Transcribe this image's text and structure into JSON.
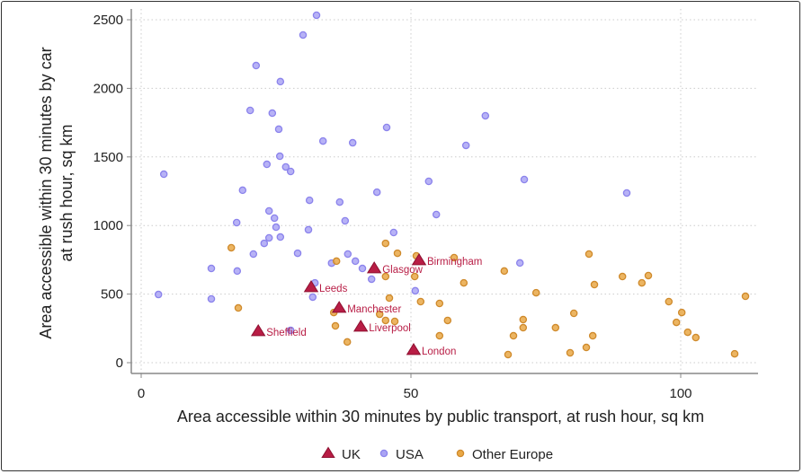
{
  "chart_data": {
    "type": "scatter",
    "title": "",
    "xlabel": "Area accessible within 30 minutes by public transport, at rush hour, sq km",
    "ylabel": [
      "Area accessible within 30 minutes by car",
      "at rush hour, sq km"
    ],
    "xlim": [
      0,
      114
    ],
    "ylim": [
      0,
      2500
    ],
    "xticks": [
      0,
      50,
      100
    ],
    "yticks": [
      0,
      500,
      1000,
      1500,
      2000,
      2500
    ],
    "grid": true,
    "legend_position": "bottom",
    "colors": {
      "UK": "#b81d45",
      "USA": "#aaa4f4",
      "Other Europe": "#e9a846"
    },
    "series": [
      {
        "name": "UK",
        "marker": "triangle",
        "points": [
          {
            "x": 21.7,
            "y": 229,
            "label": "Sheffield"
          },
          {
            "x": 31.5,
            "y": 550,
            "label": "Leeds"
          },
          {
            "x": 36.7,
            "y": 399,
            "label": "Manchester"
          },
          {
            "x": 40.7,
            "y": 262,
            "label": "Liverpool"
          },
          {
            "x": 50.5,
            "y": 92,
            "label": "London"
          },
          {
            "x": 43.2,
            "y": 687,
            "label": "Glasgow"
          },
          {
            "x": 51.5,
            "y": 746,
            "label": "Birmingham"
          }
        ]
      },
      {
        "name": "USA",
        "marker": "circle",
        "points": [
          [
            32.5,
            2533
          ],
          [
            30,
            2389
          ],
          [
            21.3,
            2166
          ],
          [
            25.8,
            2049
          ],
          [
            20.2,
            1839
          ],
          [
            24.3,
            1819
          ],
          [
            25.5,
            1702
          ],
          [
            33.7,
            1616
          ],
          [
            39.2,
            1603
          ],
          [
            45.5,
            1715
          ],
          [
            63.8,
            1800
          ],
          [
            60.2,
            1584
          ],
          [
            53.3,
            1322
          ],
          [
            71,
            1335
          ],
          [
            90,
            1237
          ],
          [
            43.7,
            1243
          ],
          [
            4.2,
            1374
          ],
          [
            18.8,
            1257
          ],
          [
            25.7,
            1505
          ],
          [
            23.3,
            1446
          ],
          [
            26.8,
            1427
          ],
          [
            27.7,
            1394
          ],
          [
            31.2,
            1184
          ],
          [
            36.8,
            1171
          ],
          [
            54.7,
            1080
          ],
          [
            23.7,
            1106
          ],
          [
            24.7,
            1054
          ],
          [
            17.7,
            1021
          ],
          [
            37.8,
            1034
          ],
          [
            25,
            988
          ],
          [
            31,
            969
          ],
          [
            46.8,
            949
          ],
          [
            23.7,
            910
          ],
          [
            22.8,
            870
          ],
          [
            25.8,
            916
          ],
          [
            20.8,
            792
          ],
          [
            29,
            798
          ],
          [
            13,
            687
          ],
          [
            17.8,
            668
          ],
          [
            35.3,
            726
          ],
          [
            38.3,
            792
          ],
          [
            39.7,
            740
          ],
          [
            41,
            687
          ],
          [
            42.7,
            609
          ],
          [
            32.2,
            582
          ],
          [
            31.8,
            478
          ],
          [
            50.8,
            524
          ],
          [
            3.2,
            497
          ],
          [
            13,
            465
          ],
          [
            27.7,
            236
          ],
          [
            70.2,
            727
          ]
        ]
      },
      {
        "name": "Other Europe",
        "marker": "circle",
        "points": [
          [
            16.7,
            838
          ],
          [
            18,
            399
          ],
          [
            36.2,
            740
          ],
          [
            45.3,
            870
          ],
          [
            47.5,
            798
          ],
          [
            51,
            779
          ],
          [
            58,
            766
          ],
          [
            45.3,
            628
          ],
          [
            50.7,
            628
          ],
          [
            59.8,
            582
          ],
          [
            46,
            471
          ],
          [
            51.8,
            445
          ],
          [
            55.3,
            432
          ],
          [
            35.7,
            366
          ],
          [
            44.2,
            353
          ],
          [
            45.3,
            308
          ],
          [
            47,
            301
          ],
          [
            56.8,
            308
          ],
          [
            36,
            268
          ],
          [
            38.2,
            151
          ],
          [
            55.3,
            196
          ],
          [
            67.3,
            668
          ],
          [
            73.2,
            510
          ],
          [
            83,
            792
          ],
          [
            84,
            569
          ],
          [
            89.2,
            628
          ],
          [
            92.8,
            582
          ],
          [
            94,
            635
          ],
          [
            70.8,
            314
          ],
          [
            70.8,
            255
          ],
          [
            69,
            196
          ],
          [
            68,
            59
          ],
          [
            76.8,
            255
          ],
          [
            80.2,
            360
          ],
          [
            79.5,
            72
          ],
          [
            82.5,
            111
          ],
          [
            83.7,
            196
          ],
          [
            97.8,
            445
          ],
          [
            100.2,
            366
          ],
          [
            99.2,
            294
          ],
          [
            101.3,
            222
          ],
          [
            102.8,
            183
          ],
          [
            110,
            65
          ],
          [
            112,
            484
          ]
        ]
      }
    ]
  }
}
